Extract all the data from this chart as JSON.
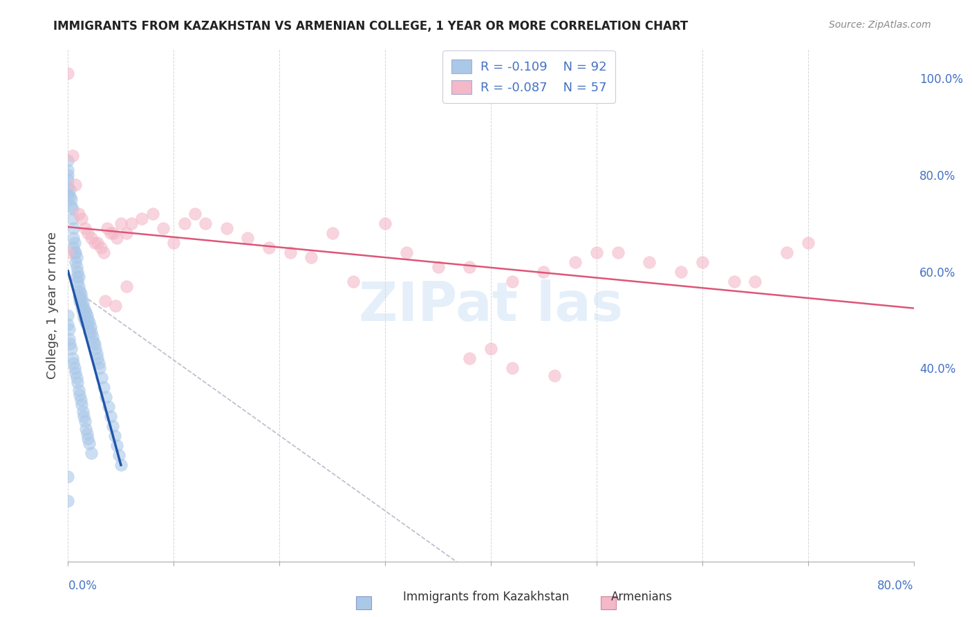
{
  "title": "IMMIGRANTS FROM KAZAKHSTAN VS ARMENIAN COLLEGE, 1 YEAR OR MORE CORRELATION CHART",
  "source": "Source: ZipAtlas.com",
  "ylabel": "College, 1 year or more",
  "right_yticks": [
    "100.0%",
    "80.0%",
    "60.0%",
    "40.0%"
  ],
  "right_ytick_vals": [
    1.0,
    0.8,
    0.6,
    0.4
  ],
  "xlim": [
    0.0,
    0.8
  ],
  "ylim": [
    0.0,
    1.06
  ],
  "legend_blue_r": "R = -0.109",
  "legend_blue_n": "N = 92",
  "legend_pink_r": "R = -0.087",
  "legend_pink_n": "N = 57",
  "blue_color": "#aac8e8",
  "pink_color": "#f4b8c8",
  "blue_line_color": "#2255aa",
  "pink_line_color": "#dd5577",
  "dash_color": "#bbbbcc",
  "background_color": "#ffffff",
  "grid_color": "#cccccc",
  "text_color": "#4472c4",
  "blue_x": [
    0.0,
    0.0,
    0.0,
    0.0,
    0.0,
    0.0,
    0.002,
    0.002,
    0.003,
    0.003,
    0.004,
    0.004,
    0.005,
    0.005,
    0.005,
    0.006,
    0.006,
    0.007,
    0.007,
    0.008,
    0.008,
    0.008,
    0.009,
    0.009,
    0.01,
    0.01,
    0.01,
    0.011,
    0.011,
    0.012,
    0.012,
    0.013,
    0.013,
    0.014,
    0.014,
    0.015,
    0.015,
    0.016,
    0.016,
    0.017,
    0.017,
    0.018,
    0.018,
    0.019,
    0.02,
    0.02,
    0.021,
    0.022,
    0.023,
    0.024,
    0.025,
    0.026,
    0.027,
    0.028,
    0.029,
    0.03,
    0.032,
    0.034,
    0.036,
    0.038,
    0.04,
    0.042,
    0.044,
    0.046,
    0.048,
    0.05,
    0.0,
    0.0,
    0.001,
    0.001,
    0.002,
    0.003,
    0.004,
    0.005,
    0.006,
    0.007,
    0.008,
    0.009,
    0.01,
    0.011,
    0.012,
    0.013,
    0.014,
    0.015,
    0.016,
    0.017,
    0.018,
    0.019,
    0.02,
    0.022,
    0.0,
    0.0
  ],
  "blue_y": [
    0.83,
    0.81,
    0.8,
    0.79,
    0.775,
    0.76,
    0.77,
    0.755,
    0.75,
    0.735,
    0.73,
    0.71,
    0.69,
    0.67,
    0.65,
    0.66,
    0.64,
    0.64,
    0.62,
    0.63,
    0.61,
    0.59,
    0.6,
    0.58,
    0.59,
    0.57,
    0.55,
    0.56,
    0.54,
    0.555,
    0.535,
    0.545,
    0.525,
    0.535,
    0.515,
    0.525,
    0.505,
    0.52,
    0.5,
    0.515,
    0.495,
    0.51,
    0.49,
    0.5,
    0.495,
    0.475,
    0.485,
    0.475,
    0.465,
    0.455,
    0.45,
    0.44,
    0.43,
    0.42,
    0.41,
    0.4,
    0.38,
    0.36,
    0.34,
    0.32,
    0.3,
    0.28,
    0.26,
    0.24,
    0.22,
    0.2,
    0.51,
    0.49,
    0.48,
    0.46,
    0.45,
    0.44,
    0.42,
    0.41,
    0.4,
    0.39,
    0.38,
    0.37,
    0.355,
    0.345,
    0.335,
    0.325,
    0.31,
    0.3,
    0.29,
    0.275,
    0.265,
    0.255,
    0.245,
    0.225,
    0.175,
    0.125
  ],
  "pink_x": [
    0.0,
    0.0,
    0.004,
    0.007,
    0.01,
    0.013,
    0.016,
    0.019,
    0.022,
    0.025,
    0.028,
    0.031,
    0.034,
    0.037,
    0.04,
    0.043,
    0.046,
    0.05,
    0.055,
    0.06,
    0.07,
    0.08,
    0.09,
    0.1,
    0.11,
    0.12,
    0.13,
    0.15,
    0.17,
    0.19,
    0.21,
    0.23,
    0.25,
    0.27,
    0.3,
    0.32,
    0.35,
    0.38,
    0.4,
    0.42,
    0.45,
    0.48,
    0.5,
    0.52,
    0.55,
    0.58,
    0.6,
    0.63,
    0.65,
    0.68,
    0.7,
    0.38,
    0.42,
    0.46,
    0.035,
    0.045,
    0.055
  ],
  "pink_y": [
    1.01,
    0.64,
    0.84,
    0.78,
    0.72,
    0.71,
    0.69,
    0.68,
    0.67,
    0.66,
    0.66,
    0.65,
    0.64,
    0.69,
    0.68,
    0.68,
    0.67,
    0.7,
    0.68,
    0.7,
    0.71,
    0.72,
    0.69,
    0.66,
    0.7,
    0.72,
    0.7,
    0.69,
    0.67,
    0.65,
    0.64,
    0.63,
    0.68,
    0.58,
    0.7,
    0.64,
    0.61,
    0.61,
    0.44,
    0.58,
    0.6,
    0.62,
    0.64,
    0.64,
    0.62,
    0.6,
    0.62,
    0.58,
    0.58,
    0.64,
    0.66,
    0.42,
    0.4,
    0.385,
    0.54,
    0.53,
    0.57
  ],
  "watermark_text": "ZIPat las",
  "watermark_color": "#c5ddf5",
  "watermark_alpha": 0.45,
  "watermark_fontsize": 56
}
